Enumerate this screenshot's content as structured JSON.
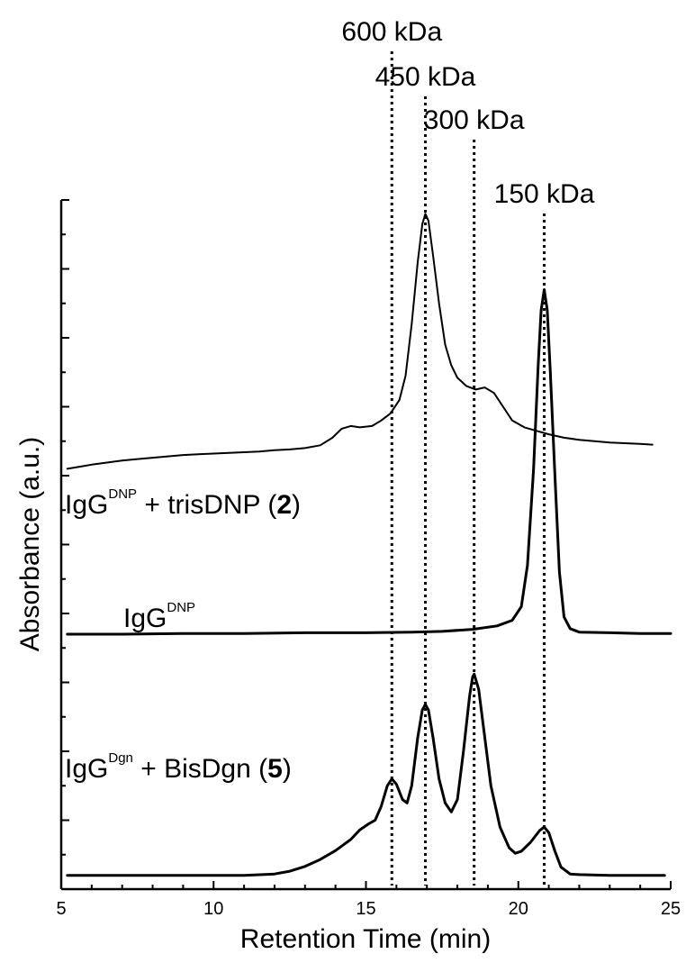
{
  "chart_data": {
    "type": "line",
    "xlabel": "Retention Time (min)",
    "ylabel": "Absorbance (a.u.)",
    "xlim": [
      5,
      25
    ],
    "ylim": [
      0,
      10
    ],
    "x_ticks": [
      5,
      10,
      15,
      20,
      25
    ],
    "y_ticks_labeled": false,
    "grid": false,
    "markers": [
      {
        "label": "600 kDa",
        "x": 15.85
      },
      {
        "label": "450 kDa",
        "x": 16.95
      },
      {
        "label": "300 kDa",
        "x": 18.55
      },
      {
        "label": "150 kDa",
        "x": 20.85
      }
    ],
    "series": [
      {
        "name": "IgG",
        "name_sup": "DNP",
        "name_suffix": "+ trisDNP (",
        "name_bold": "2",
        "name_end": ")",
        "stroke_width": 2,
        "points": [
          [
            5.2,
            6.1
          ],
          [
            5.6,
            6.13
          ],
          [
            6.0,
            6.16
          ],
          [
            6.5,
            6.19
          ],
          [
            7.0,
            6.22
          ],
          [
            7.5,
            6.24
          ],
          [
            8.0,
            6.26
          ],
          [
            8.5,
            6.28
          ],
          [
            9.0,
            6.3
          ],
          [
            9.5,
            6.31
          ],
          [
            10.0,
            6.32
          ],
          [
            10.5,
            6.33
          ],
          [
            11.0,
            6.34
          ],
          [
            11.5,
            6.35
          ],
          [
            12.0,
            6.37
          ],
          [
            12.5,
            6.38
          ],
          [
            13.0,
            6.4
          ],
          [
            13.5,
            6.44
          ],
          [
            13.9,
            6.55
          ],
          [
            14.2,
            6.68
          ],
          [
            14.5,
            6.72
          ],
          [
            14.8,
            6.7
          ],
          [
            15.2,
            6.72
          ],
          [
            15.5,
            6.8
          ],
          [
            15.8,
            6.9
          ],
          [
            16.1,
            7.1
          ],
          [
            16.3,
            7.45
          ],
          [
            16.5,
            8.2
          ],
          [
            16.7,
            9.1
          ],
          [
            16.85,
            9.65
          ],
          [
            16.95,
            9.8
          ],
          [
            17.05,
            9.7
          ],
          [
            17.2,
            9.2
          ],
          [
            17.4,
            8.5
          ],
          [
            17.6,
            7.9
          ],
          [
            17.8,
            7.6
          ],
          [
            18.0,
            7.42
          ],
          [
            18.3,
            7.3
          ],
          [
            18.6,
            7.25
          ],
          [
            18.9,
            7.28
          ],
          [
            19.2,
            7.2
          ],
          [
            19.5,
            7.0
          ],
          [
            19.8,
            6.8
          ],
          [
            20.2,
            6.7
          ],
          [
            20.6,
            6.65
          ],
          [
            21.0,
            6.6
          ],
          [
            21.5,
            6.55
          ],
          [
            22.0,
            6.52
          ],
          [
            22.5,
            6.5
          ],
          [
            23.0,
            6.48
          ],
          [
            23.5,
            6.47
          ],
          [
            24.0,
            6.46
          ],
          [
            24.4,
            6.45
          ]
        ]
      },
      {
        "name": "IgG",
        "name_sup": "DNP",
        "name_suffix": "",
        "name_bold": "",
        "name_end": "",
        "stroke_width": 3,
        "points": [
          [
            5.2,
            3.7
          ],
          [
            7.0,
            3.7
          ],
          [
            9.0,
            3.71
          ],
          [
            11.0,
            3.71
          ],
          [
            13.0,
            3.72
          ],
          [
            15.0,
            3.72
          ],
          [
            16.5,
            3.73
          ],
          [
            17.5,
            3.74
          ],
          [
            18.5,
            3.77
          ],
          [
            19.3,
            3.82
          ],
          [
            19.8,
            3.9
          ],
          [
            20.1,
            4.1
          ],
          [
            20.3,
            4.7
          ],
          [
            20.5,
            6.1
          ],
          [
            20.65,
            7.6
          ],
          [
            20.75,
            8.4
          ],
          [
            20.85,
            8.7
          ],
          [
            20.95,
            8.4
          ],
          [
            21.05,
            7.5
          ],
          [
            21.2,
            6.0
          ],
          [
            21.35,
            4.6
          ],
          [
            21.5,
            3.95
          ],
          [
            21.7,
            3.78
          ],
          [
            22.0,
            3.73
          ],
          [
            23.0,
            3.72
          ],
          [
            24.0,
            3.71
          ],
          [
            25.0,
            3.71
          ]
        ]
      },
      {
        "name": "IgG",
        "name_sup": "Dgn",
        "name_suffix": "+ BisDgn (",
        "name_bold": "5",
        "name_end": ")",
        "stroke_width": 3,
        "points": [
          [
            5.2,
            0.2
          ],
          [
            8.0,
            0.2
          ],
          [
            10.0,
            0.2
          ],
          [
            11.0,
            0.2
          ],
          [
            12.0,
            0.22
          ],
          [
            12.5,
            0.26
          ],
          [
            13.0,
            0.33
          ],
          [
            13.5,
            0.43
          ],
          [
            14.0,
            0.56
          ],
          [
            14.5,
            0.72
          ],
          [
            14.8,
            0.86
          ],
          [
            15.1,
            0.95
          ],
          [
            15.3,
            1.0
          ],
          [
            15.5,
            1.2
          ],
          [
            15.7,
            1.5
          ],
          [
            15.85,
            1.6
          ],
          [
            16.0,
            1.52
          ],
          [
            16.2,
            1.3
          ],
          [
            16.35,
            1.25
          ],
          [
            16.5,
            1.5
          ],
          [
            16.7,
            2.2
          ],
          [
            16.85,
            2.6
          ],
          [
            16.95,
            2.68
          ],
          [
            17.05,
            2.6
          ],
          [
            17.2,
            2.2
          ],
          [
            17.4,
            1.6
          ],
          [
            17.6,
            1.25
          ],
          [
            17.8,
            1.12
          ],
          [
            18.0,
            1.3
          ],
          [
            18.2,
            2.0
          ],
          [
            18.4,
            2.8
          ],
          [
            18.5,
            3.08
          ],
          [
            18.55,
            3.12
          ],
          [
            18.7,
            2.9
          ],
          [
            18.9,
            2.2
          ],
          [
            19.1,
            1.5
          ],
          [
            19.4,
            0.9
          ],
          [
            19.7,
            0.6
          ],
          [
            19.9,
            0.52
          ],
          [
            20.1,
            0.55
          ],
          [
            20.4,
            0.68
          ],
          [
            20.7,
            0.85
          ],
          [
            20.85,
            0.9
          ],
          [
            21.0,
            0.82
          ],
          [
            21.2,
            0.55
          ],
          [
            21.4,
            0.32
          ],
          [
            21.7,
            0.22
          ],
          [
            22.0,
            0.21
          ],
          [
            23.0,
            0.2
          ],
          [
            24.0,
            0.2
          ],
          [
            24.8,
            0.2
          ]
        ]
      }
    ]
  }
}
